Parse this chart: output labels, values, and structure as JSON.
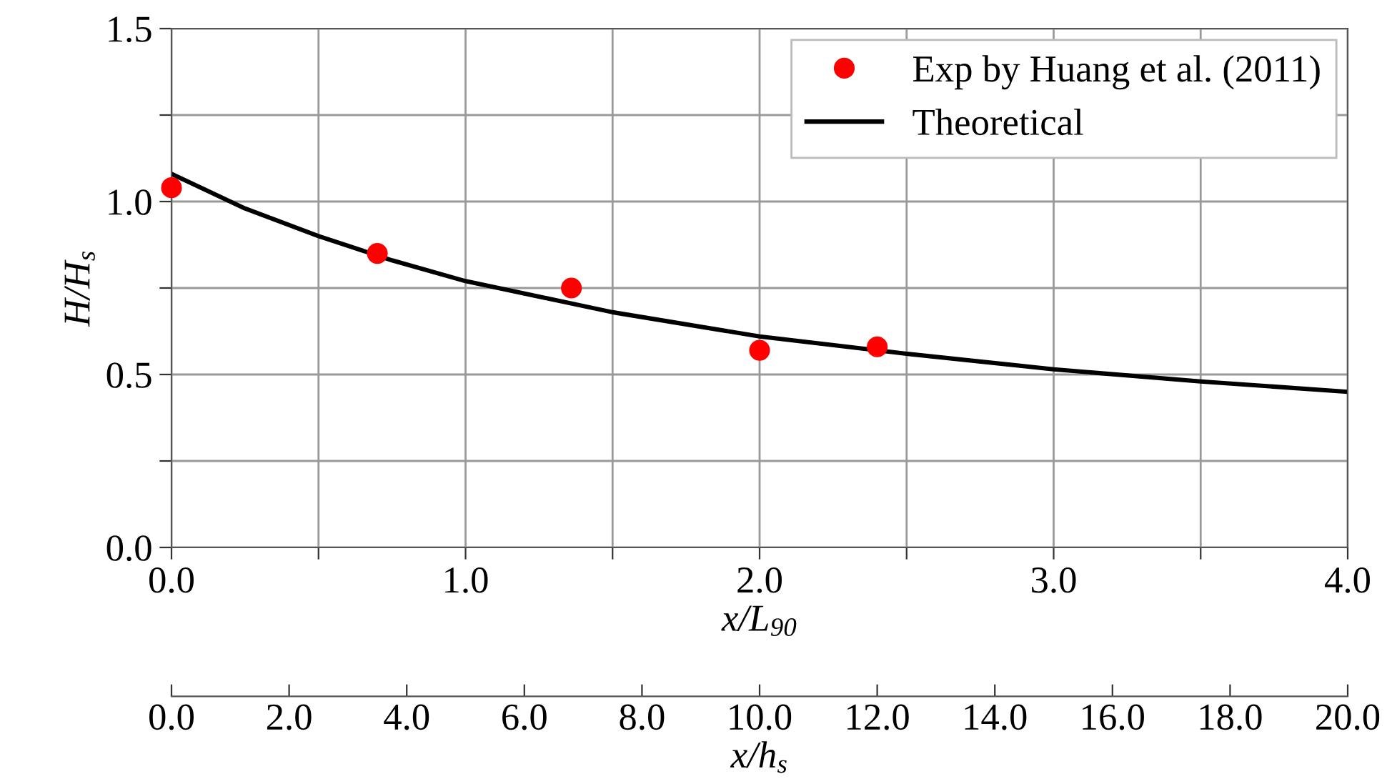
{
  "chart_data": {
    "type": "scatter",
    "xlabel": "x/L$_{90}$",
    "ylabel": "H/H$_{s}$",
    "x2label": "x/h$_{s}$",
    "xlim": [
      0,
      4
    ],
    "xticks": [
      {
        "value": 0,
        "label": "0.0"
      },
      {
        "value": 0.5,
        "label": null
      },
      {
        "value": 1,
        "label": "1.0"
      },
      {
        "value": 1.5,
        "label": null
      },
      {
        "value": 2,
        "label": "2.0"
      },
      {
        "value": 2.5,
        "label": null
      },
      {
        "value": 3,
        "label": "3.0"
      },
      {
        "value": 3.5,
        "label": null
      },
      {
        "value": 4,
        "label": "4.0"
      }
    ],
    "ylim": [
      0,
      1.5
    ],
    "yticks": [
      {
        "value": 0,
        "label": "0.0"
      },
      {
        "value": 0.25,
        "label": null
      },
      {
        "value": 0.5,
        "label": "0.5"
      },
      {
        "value": 0.75,
        "label": null
      },
      {
        "value": 1,
        "label": "1.0"
      },
      {
        "value": 1.25,
        "label": null
      },
      {
        "value": 1.5,
        "label": "1.5"
      }
    ],
    "x2lim": [
      0,
      20
    ],
    "x2ticks": [
      {
        "value": 0,
        "label": "0.0"
      },
      {
        "value": 2,
        "label": "2.0"
      },
      {
        "value": 4,
        "label": "4.0"
      },
      {
        "value": 6,
        "label": "6.0"
      },
      {
        "value": 8,
        "label": "8.0"
      },
      {
        "value": 10,
        "label": "10.0"
      },
      {
        "value": 12,
        "label": "12.0"
      },
      {
        "value": 14,
        "label": "14.0"
      },
      {
        "value": 16,
        "label": "16.0"
      },
      {
        "value": 18,
        "label": "18.0"
      },
      {
        "value": 20,
        "label": "20.0"
      }
    ],
    "grid": true,
    "legend": "top right",
    "series": [
      {
        "name": "Exp by Huang et al. (2011)",
        "marker": "circle",
        "color": "#ff0000",
        "x": [
          0,
          0.7,
          1.36,
          2.0,
          2.4
        ],
        "values": [
          1.04,
          0.85,
          0.75,
          0.57,
          0.58
        ]
      },
      {
        "name": "Theoretical",
        "type": "line",
        "line_style": "solid",
        "color": "#000000",
        "x": [
          0,
          0.25,
          0.5,
          0.75,
          1,
          1.5,
          2,
          2.5,
          3,
          3.5,
          4
        ],
        "values": [
          1.08,
          0.98,
          0.9,
          0.83,
          0.77,
          0.68,
          0.61,
          0.56,
          0.515,
          0.48,
          0.45
        ]
      }
    ]
  }
}
